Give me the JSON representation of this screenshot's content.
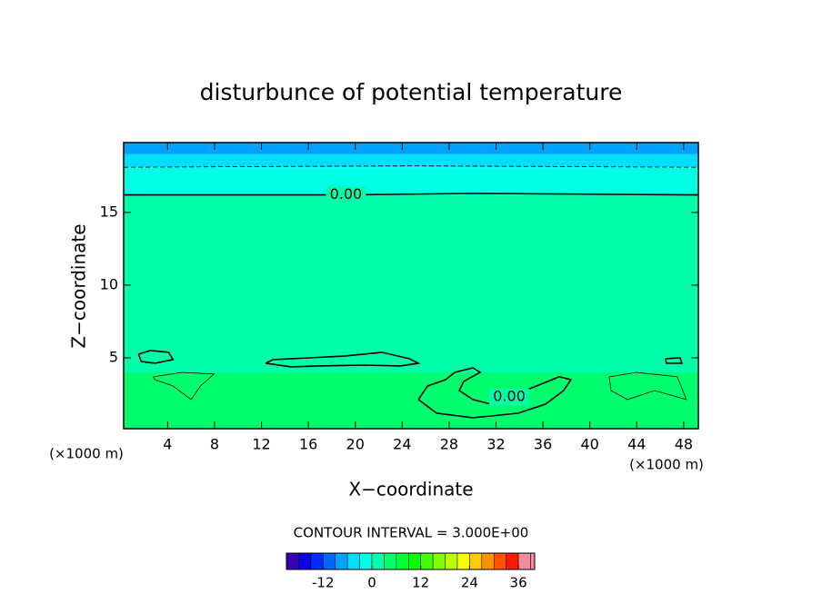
{
  "chart_data": {
    "type": "contour",
    "title": "disturbunce of potential temperature",
    "x_label": "X−coordinate",
    "y_label": "Z−coordinate",
    "x_unit_left": "(×1000 m)",
    "x_unit_right": "(×1000 m)",
    "xlim": [
      0.25,
      49.25
    ],
    "ylim": [
      0.125,
      19.8
    ],
    "xticks": [
      4,
      8,
      12,
      16,
      20,
      24,
      28,
      32,
      36,
      40,
      44,
      48
    ],
    "yticks": [
      5,
      10,
      15
    ],
    "layers": [
      {
        "zlim": [
          19.0,
          19.8
        ],
        "value": -7.5
      },
      {
        "zlim": [
          18.1,
          19.0
        ],
        "value": -4.5
      },
      {
        "zlim": [
          16.2,
          18.1
        ],
        "value": -1.5
      },
      {
        "zlim": [
          4.0,
          16.2
        ],
        "value": 1.5
      },
      {
        "zlim": [
          0.125,
          4.0
        ],
        "value": 4.5
      }
    ],
    "contours": [
      {
        "level": 0,
        "label": "0.00",
        "x": [
          0.25,
          10,
          19.2,
          30,
          40,
          49.25
        ],
        "z": [
          16.2,
          16.2,
          16.2,
          16.3,
          16.25,
          16.2
        ]
      },
      {
        "level": -3,
        "x": [
          0.25,
          12,
          25,
          37,
          49.25
        ],
        "z": [
          18.1,
          18.15,
          18.2,
          18.15,
          18.1
        ]
      },
      {
        "level": 0,
        "label": "0.00",
        "x": [
          25.38,
          26.16,
          27.7,
          28.48,
          30.03,
          30.65,
          29.25,
          28.87,
          30.03,
          31.58,
          33.13,
          35.45,
          37.39,
          38.39,
          37.77,
          36.22,
          33.9,
          31.58,
          30.03,
          26.93,
          25.38
        ],
        "z": [
          2.13,
          3.06,
          3.5,
          4.0,
          4.31,
          4.0,
          3.38,
          2.75,
          2.13,
          1.81,
          2.31,
          3.06,
          3.69,
          3.5,
          2.75,
          1.81,
          1.19,
          1.0,
          0.88,
          1.19,
          2.13
        ]
      },
      {
        "level": 0,
        "x": [
          12.37,
          12.99,
          16.08,
          19.18,
          22.28,
          24.6,
          25.38,
          23.83,
          20.73,
          16.86,
          14.54,
          12.37
        ],
        "z": [
          4.63,
          4.88,
          5.0,
          5.13,
          5.38,
          4.94,
          4.63,
          4.44,
          4.5,
          4.44,
          4.38,
          4.63
        ]
      },
      {
        "level": 0,
        "x": [
          1.52,
          2.53,
          4.08,
          4.46,
          2.92,
          1.75,
          1.52
        ],
        "z": [
          5.25,
          5.5,
          5.38,
          4.88,
          4.63,
          4.75,
          5.25
        ]
      },
      {
        "level": 0,
        "x": [
          46.45,
          47.69,
          47.85,
          46.53,
          46.45
        ],
        "z": [
          4.94,
          5.0,
          4.63,
          4.63,
          4.94
        ]
      },
      {
        "level": 3,
        "x": [
          2.76,
          5.24,
          7.95,
          6.79,
          6.01,
          4.46,
          2.92,
          2.76
        ],
        "z": [
          3.69,
          4.0,
          3.88,
          3.06,
          2.13,
          3.06,
          3.5,
          3.69
        ]
      },
      {
        "level": 3,
        "x": [
          41.65,
          43.97,
          47.46,
          48.23,
          45.52,
          43.2,
          41.81,
          41.65
        ],
        "z": [
          3.69,
          4.0,
          3.69,
          2.13,
          2.75,
          2.13,
          2.75,
          3.69
        ]
      }
    ],
    "contour_interval_text": "CONTOUR INTERVAL = 3.000E+00",
    "colorbar": {
      "lim": [
        -21,
        40
      ],
      "interval": 3,
      "ticks": [
        -12,
        0,
        12,
        24,
        36
      ]
    }
  }
}
